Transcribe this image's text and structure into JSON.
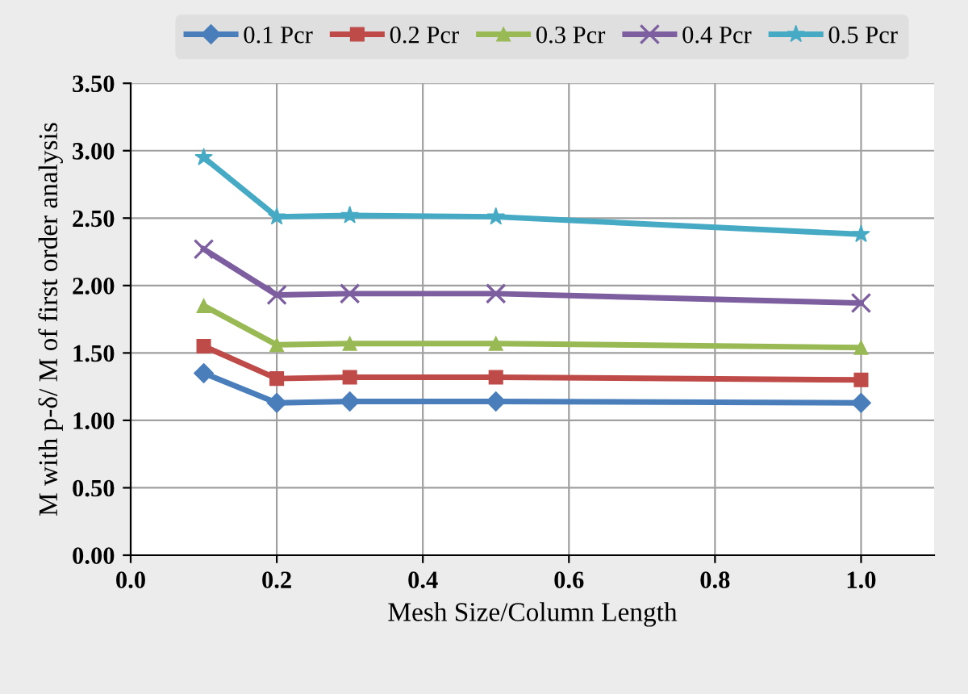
{
  "chart_data": {
    "type": "line",
    "xlabel": "Mesh Size/Column Length",
    "ylabel": "M with p-δ/ M of first order analysis",
    "x": [
      0.1,
      0.2,
      0.3,
      0.5,
      1.0
    ],
    "series": [
      {
        "name": "0.1 Pcr",
        "color": "#4a7ebb",
        "marker": "diamond",
        "values": [
          1.35,
          1.13,
          1.14,
          1.14,
          1.13
        ]
      },
      {
        "name": "0.2 Pcr",
        "color": "#be4b48",
        "marker": "square",
        "values": [
          1.55,
          1.31,
          1.32,
          1.32,
          1.3
        ]
      },
      {
        "name": "0.3 Pcr",
        "color": "#98b954",
        "marker": "triangle",
        "values": [
          1.85,
          1.56,
          1.57,
          1.57,
          1.54
        ]
      },
      {
        "name": "0.4 Pcr",
        "color": "#7d5fa0",
        "marker": "cross",
        "values": [
          2.27,
          1.93,
          1.94,
          1.94,
          1.87
        ]
      },
      {
        "name": "0.5 Pcr",
        "color": "#46aac5",
        "marker": "star",
        "values": [
          2.95,
          2.51,
          2.52,
          2.51,
          2.38
        ]
      }
    ],
    "xlim": [
      0.0,
      1.1
    ],
    "xticks": [
      {
        "value": 0.0,
        "label": "0.0"
      },
      0.2,
      0.4,
      0.6,
      0.8,
      {
        "value": 1.0,
        "label": "1.0"
      }
    ],
    "ylim": [
      0.0,
      3.5
    ],
    "yticks": [
      {
        "value": 0.0,
        "label": "0.00"
      },
      {
        "value": 0.5,
        "label": "0.50"
      },
      {
        "value": 1.0,
        "label": "1.00"
      },
      {
        "value": 1.5,
        "label": "1.50"
      },
      {
        "value": 2.0,
        "label": "2.00"
      },
      {
        "value": 2.5,
        "label": "2.50"
      },
      {
        "value": 3.0,
        "label": "3.00"
      },
      {
        "value": 3.5,
        "label": "3.50"
      }
    ],
    "grid": true,
    "legend": "top"
  }
}
